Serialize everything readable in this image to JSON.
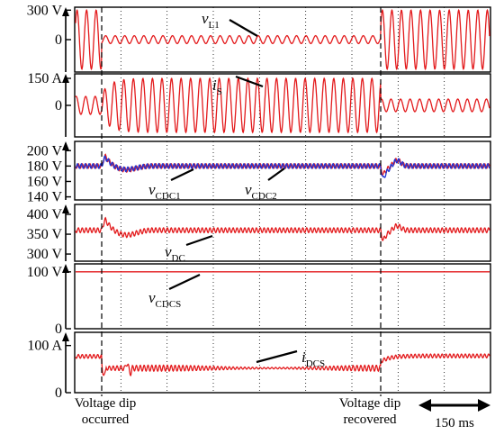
{
  "chart_data": [
    {
      "type": "line",
      "id": "vL1",
      "signal": "v_L1",
      "y_ticks": [
        {
          "label": "300 V",
          "value": 300
        },
        {
          "label": "0",
          "value": 0
        }
      ],
      "ylim": [
        -330,
        330
      ],
      "segments": [
        {
          "phase": "before_dip",
          "amplitude": 300
        },
        {
          "phase": "during_dip",
          "amplitude": 40
        },
        {
          "phase": "after_recovery",
          "amplitude": 300
        }
      ],
      "grid": true
    },
    {
      "type": "line",
      "id": "iS",
      "signal": "i_S",
      "y_ticks": [
        {
          "label": "150 A",
          "value": 150
        },
        {
          "label": "0",
          "value": 0
        }
      ],
      "ylim": [
        -175,
        175
      ],
      "segments": [
        {
          "phase": "before_dip",
          "amplitude": 50
        },
        {
          "phase": "during_dip",
          "amplitude": 150
        },
        {
          "phase": "after_recovery",
          "amplitude": 35
        }
      ],
      "grid": true
    },
    {
      "type": "line",
      "id": "vCDC",
      "y_ticks": [
        {
          "label": "200 V",
          "value": 200
        },
        {
          "label": "180 V",
          "value": 180
        },
        {
          "label": "160 V",
          "value": 160
        },
        {
          "label": "140 V",
          "value": 140
        }
      ],
      "ylim": [
        136,
        212
      ],
      "series": [
        {
          "name": "v_CDC1",
          "color": "#e31a1c",
          "steady": 180,
          "ripple": 3,
          "dip_peak": 199,
          "dip_undershoot": 172,
          "recovery_dip": 160
        },
        {
          "name": "v_CDC2",
          "color": "#1f35d6",
          "steady": 180,
          "ripple": 3,
          "dip_peak": 197,
          "dip_undershoot": 173,
          "recovery_dip": 149
        }
      ],
      "grid": true
    },
    {
      "type": "line",
      "id": "vDC",
      "signal": "v_DC",
      "y_ticks": [
        {
          "label": "400 V",
          "value": 400
        },
        {
          "label": "350 V",
          "value": 350
        },
        {
          "label": "300 V",
          "value": 300
        }
      ],
      "ylim": [
        282,
        425
      ],
      "steady": 360,
      "ripple": 6,
      "dip_peak": 400,
      "dip_undershoot": 343,
      "recovery_dip": 314,
      "grid": true
    },
    {
      "type": "line",
      "id": "vCDCS",
      "signal": "v_CDCS",
      "y_ticks": [
        {
          "label": "100 V",
          "value": 100
        },
        {
          "label": "0",
          "value": 0
        }
      ],
      "ylim": [
        0,
        114
      ],
      "steady": 100,
      "grid": true
    },
    {
      "type": "line",
      "id": "iDCS",
      "signal": "i_DCS",
      "y_ticks": [
        {
          "label": "100 A",
          "value": 100
        },
        {
          "label": "0",
          "value": 0
        }
      ],
      "ylim": [
        0,
        128
      ],
      "before_dip": 77,
      "during_dip": 52,
      "after_recovery": 78,
      "ripple": 4,
      "grid": true
    }
  ],
  "labels": {
    "vL1": {
      "main": "v",
      "sub": "L1"
    },
    "iS": {
      "main": "i",
      "sub": "S"
    },
    "vCDC1": {
      "main": "v",
      "sub": "CDC1"
    },
    "vCDC2": {
      "main": "v",
      "sub": "CDC2"
    },
    "vDC": {
      "main": "v",
      "sub": "DC"
    },
    "vCDCS": {
      "main": "v",
      "sub": "CDCS"
    },
    "iDCS": {
      "main": "i",
      "sub": "DCS"
    }
  },
  "annotations": {
    "dip_occurred": [
      "Voltage dip",
      "occurred"
    ],
    "dip_recovered": [
      "Voltage dip",
      "recovered"
    ],
    "time_scale": "150 ms"
  },
  "colors": {
    "trace": "#e31a1c",
    "trace2": "#1f35d6",
    "axis": "#000000",
    "grid": "#000000"
  }
}
